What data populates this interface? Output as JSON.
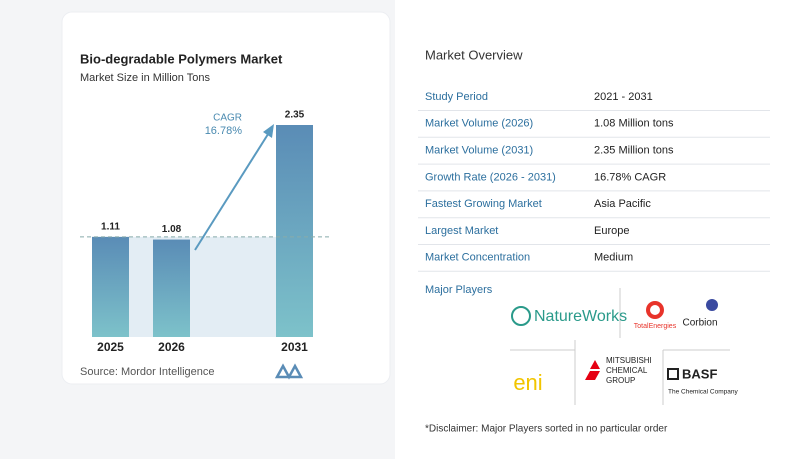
{
  "chart_data": {
    "type": "bar",
    "title": "Bio-degradable Polymers Market",
    "subtitle": "Market Size in Million Tons",
    "categories": [
      "2025",
      "2026",
      "2031"
    ],
    "values": [
      1.11,
      1.08,
      2.35
    ],
    "annotation": {
      "label": "CAGR",
      "value": "16.78%"
    },
    "source": "Source: Mordor Intelligence"
  },
  "overview": {
    "title": "Market Overview",
    "rows": [
      [
        "Study Period",
        "2021 - 2031"
      ],
      [
        "Market Volume (2026)",
        "1.08 Million tons"
      ],
      [
        "Market Volume (2031)",
        "2.35 Million tons"
      ],
      [
        "Growth Rate (2026 - 2031)",
        "16.78% CAGR"
      ],
      [
        "Fastest Growing Market",
        "Asia Pacific"
      ],
      [
        "Largest Market",
        "Europe"
      ],
      [
        "Market Concentration",
        "Medium"
      ]
    ],
    "players_title": "Major Players",
    "players": [
      "NatureWorks",
      "TotalEnergies",
      "Corbion",
      "eni",
      "MITSUBISHI CHEMICAL GROUP",
      "BASF",
      "The Chemical Company"
    ],
    "disclaimer": "*Disclaimer: Major Players sorted in no particular order"
  }
}
